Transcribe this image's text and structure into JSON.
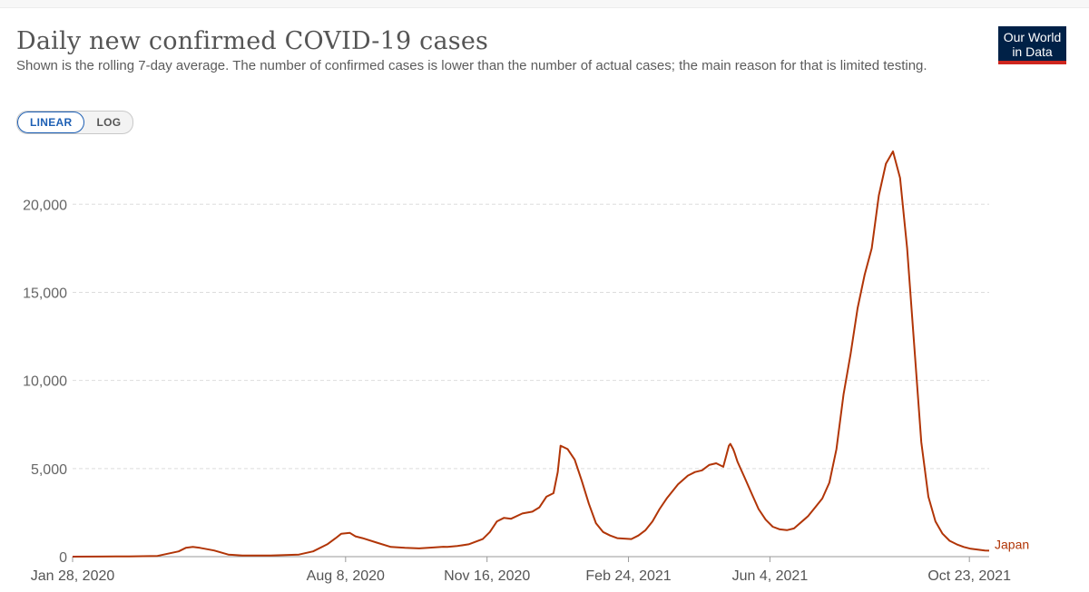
{
  "header": {
    "title": "Daily new confirmed COVID-19 cases",
    "subtitle": "Shown is the rolling 7-day average. The number of confirmed cases is lower than the number of actual cases; the main reason for that is limited testing.",
    "logo_line1": "Our World",
    "logo_line2": "in Data"
  },
  "controls": {
    "linear_label": "LINEAR",
    "log_label": "LOG",
    "selected": "LINEAR"
  },
  "colors": {
    "series": "#b13507",
    "grid": "#dddddd",
    "logo_bg": "#002147",
    "logo_accent": "#ce261e",
    "toggle_active": "#1d5fb4"
  },
  "chart_data": {
    "type": "line",
    "title": "Daily new confirmed COVID-19 cases",
    "ylabel": "",
    "xlabel": "",
    "ylim": [
      0,
      23000
    ],
    "yticks": [
      0,
      5000,
      10000,
      15000,
      20000
    ],
    "ytick_labels": [
      "0",
      "5,000",
      "10,000",
      "15,000",
      "20,000"
    ],
    "xlim_days": [
      0,
      648
    ],
    "xticks": [
      {
        "day": 0,
        "label": "Jan 28, 2020"
      },
      {
        "day": 193,
        "label": "Aug 8, 2020"
      },
      {
        "day": 293,
        "label": "Nov 16, 2020"
      },
      {
        "day": 393,
        "label": "Feb 24, 2021"
      },
      {
        "day": 493,
        "label": "Jun 4, 2021"
      },
      {
        "day": 634,
        "label": "Oct 23, 2021"
      }
    ],
    "series": [
      {
        "name": "Japan",
        "x": [
          0,
          20,
          40,
          60,
          75,
          80,
          85,
          90,
          100,
          110,
          120,
          140,
          160,
          170,
          180,
          186,
          190,
          196,
          200,
          205,
          215,
          225,
          235,
          245,
          255,
          262,
          265,
          272,
          280,
          290,
          295,
          300,
          305,
          310,
          318,
          325,
          330,
          335,
          340,
          343,
          345,
          350,
          355,
          360,
          365,
          370,
          375,
          380,
          385,
          395,
          400,
          405,
          410,
          415,
          420,
          428,
          435,
          440,
          445,
          450,
          455,
          460,
          464,
          465,
          467,
          468,
          470,
          475,
          480,
          485,
          490,
          495,
          500,
          505,
          510,
          520,
          525,
          530,
          535,
          540,
          545,
          550,
          555,
          560,
          565,
          570,
          575,
          580,
          585,
          590,
          595,
          600,
          605,
          610,
          615,
          620,
          625,
          630,
          635,
          640,
          645,
          648
        ],
        "y": [
          0,
          5,
          15,
          40,
          300,
          500,
          550,
          500,
          350,
          120,
          60,
          60,
          120,
          300,
          700,
          1050,
          1300,
          1350,
          1150,
          1050,
          800,
          550,
          500,
          470,
          520,
          560,
          550,
          600,
          700,
          1000,
          1400,
          2000,
          2200,
          2150,
          2450,
          2550,
          2800,
          3400,
          3600,
          4800,
          6300,
          6100,
          5500,
          4300,
          3000,
          1900,
          1400,
          1200,
          1050,
          1000,
          1200,
          1500,
          2000,
          2700,
          3300,
          4100,
          4600,
          4800,
          4900,
          5200,
          5300,
          5100,
          6300,
          6400,
          6100,
          5900,
          5400,
          4500,
          3600,
          2700,
          2100,
          1700,
          1550,
          1500,
          1600,
          2300,
          2800,
          3300,
          4200,
          6100,
          9200,
          11500,
          14100,
          16000,
          17500,
          20500,
          22300,
          23000,
          21500,
          17500,
          12000,
          6500,
          3400,
          2000,
          1300,
          900,
          700,
          550,
          450,
          400,
          350,
          340
        ]
      }
    ],
    "legend": "inline-right"
  }
}
